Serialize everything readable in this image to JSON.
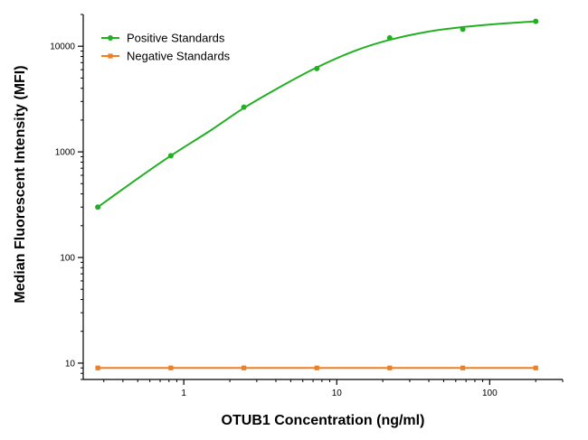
{
  "chart_data": {
    "type": "line",
    "xlabel": "OTUB1 Concentration (ng/ml)",
    "ylabel": "Median Fluorescent Intensity (MFI)",
    "xscale": "log",
    "yscale": "log",
    "xlim": [
      0.22,
      300
    ],
    "ylim": [
      7,
      20000
    ],
    "x_ticks": [
      1,
      10,
      100
    ],
    "x_tick_labels": [
      "1",
      "10",
      "100"
    ],
    "y_ticks": [
      10,
      100,
      1000,
      10000
    ],
    "y_tick_labels": [
      "10",
      "100",
      "1000",
      "10000"
    ],
    "grid": false,
    "legend_position": "top-left",
    "series": [
      {
        "name": "Positive Standards",
        "color": "#22b022",
        "marker": "circle",
        "curve": "fitted",
        "points": [
          {
            "x": 0.274,
            "y": 300
          },
          {
            "x": 0.823,
            "y": 920
          },
          {
            "x": 2.47,
            "y": 2650
          },
          {
            "x": 7.41,
            "y": 6150
          },
          {
            "x": 22.2,
            "y": 12000
          },
          {
            "x": 66.7,
            "y": 14500
          },
          {
            "x": 200,
            "y": 17200
          }
        ],
        "fit_points": [
          {
            "x": 0.274,
            "y": 300
          },
          {
            "x": 0.5,
            "y": 560
          },
          {
            "x": 0.823,
            "y": 920
          },
          {
            "x": 1.5,
            "y": 1600
          },
          {
            "x": 2.47,
            "y": 2600
          },
          {
            "x": 4.5,
            "y": 4300
          },
          {
            "x": 7.41,
            "y": 6300
          },
          {
            "x": 13,
            "y": 9000
          },
          {
            "x": 22.2,
            "y": 11500
          },
          {
            "x": 40,
            "y": 13800
          },
          {
            "x": 66.7,
            "y": 15200
          },
          {
            "x": 120,
            "y": 16400
          },
          {
            "x": 200,
            "y": 17200
          }
        ]
      },
      {
        "name": "Negative Standards",
        "color": "#f07f1f",
        "marker": "square",
        "curve": "fitted",
        "points": [
          {
            "x": 0.274,
            "y": 9
          },
          {
            "x": 0.823,
            "y": 9
          },
          {
            "x": 2.47,
            "y": 9
          },
          {
            "x": 7.41,
            "y": 9
          },
          {
            "x": 22.2,
            "y": 9
          },
          {
            "x": 66.7,
            "y": 9
          },
          {
            "x": 200,
            "y": 9
          }
        ],
        "fit_points": [
          {
            "x": 0.274,
            "y": 9
          },
          {
            "x": 200,
            "y": 9
          }
        ]
      }
    ]
  }
}
